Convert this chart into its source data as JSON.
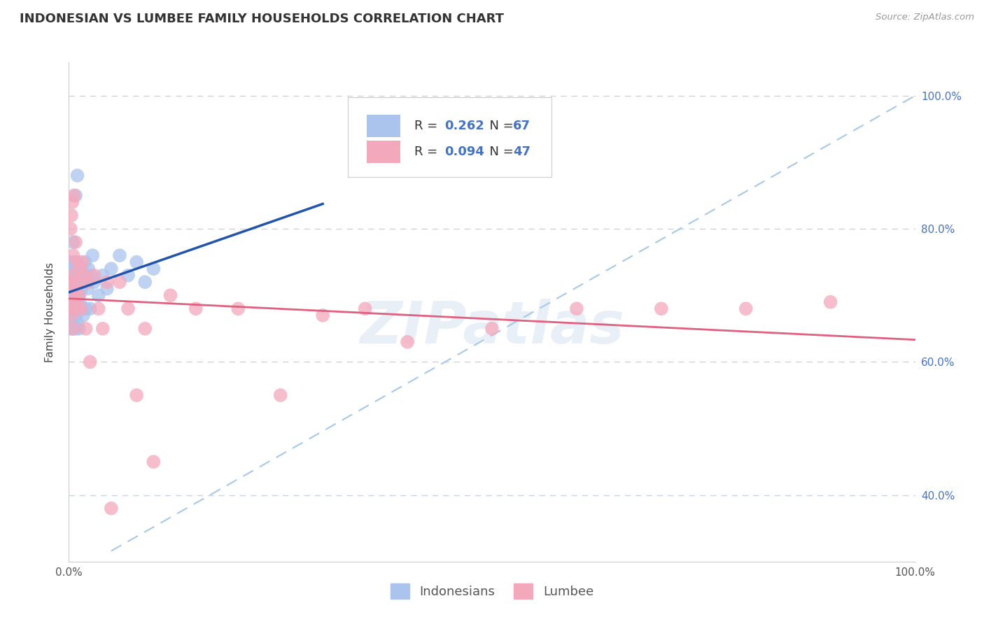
{
  "title": "INDONESIAN VS LUMBEE FAMILY HOUSEHOLDS CORRELATION CHART",
  "source": "Source: ZipAtlas.com",
  "ylabel": "Family Households",
  "indonesian_label": "Indonesians",
  "lumbee_label": "Lumbee",
  "indonesian_color": "#aac4ed",
  "lumbee_color": "#f4a8bc",
  "indonesian_line_color": "#2255aa",
  "lumbee_line_color": "#e06080",
  "trend_dash_color": "#a8c8e8",
  "r_indonesian": 0.262,
  "n_indonesian": 67,
  "r_lumbee": 0.094,
  "n_lumbee": 47,
  "watermark": "ZIPatlas",
  "indonesian_x": [
    0.001,
    0.001,
    0.001,
    0.002,
    0.002,
    0.002,
    0.002,
    0.003,
    0.003,
    0.003,
    0.003,
    0.004,
    0.004,
    0.004,
    0.004,
    0.005,
    0.005,
    0.005,
    0.005,
    0.006,
    0.006,
    0.006,
    0.007,
    0.007,
    0.007,
    0.007,
    0.008,
    0.008,
    0.008,
    0.009,
    0.009,
    0.009,
    0.01,
    0.01,
    0.01,
    0.011,
    0.011,
    0.012,
    0.012,
    0.013,
    0.013,
    0.014,
    0.015,
    0.015,
    0.016,
    0.017,
    0.018,
    0.019,
    0.02,
    0.02,
    0.022,
    0.023,
    0.025,
    0.026,
    0.028,
    0.03,
    0.035,
    0.04,
    0.045,
    0.05,
    0.06,
    0.07,
    0.08,
    0.09,
    0.1,
    0.008,
    0.01
  ],
  "indonesian_y": [
    0.68,
    0.72,
    0.65,
    0.74,
    0.7,
    0.67,
    0.71,
    0.73,
    0.68,
    0.75,
    0.66,
    0.72,
    0.69,
    0.74,
    0.65,
    0.78,
    0.68,
    0.71,
    0.65,
    0.67,
    0.72,
    0.7,
    0.71,
    0.68,
    0.75,
    0.73,
    0.7,
    0.65,
    0.73,
    0.73,
    0.67,
    0.69,
    0.69,
    0.72,
    0.66,
    0.68,
    0.71,
    0.7,
    0.65,
    0.73,
    0.69,
    0.74,
    0.68,
    0.71,
    0.72,
    0.67,
    0.72,
    0.75,
    0.73,
    0.68,
    0.71,
    0.74,
    0.68,
    0.73,
    0.76,
    0.72,
    0.7,
    0.73,
    0.71,
    0.74,
    0.76,
    0.73,
    0.75,
    0.72,
    0.74,
    0.85,
    0.88
  ],
  "lumbee_x": [
    0.001,
    0.002,
    0.002,
    0.003,
    0.003,
    0.004,
    0.004,
    0.005,
    0.005,
    0.006,
    0.006,
    0.007,
    0.008,
    0.008,
    0.009,
    0.01,
    0.01,
    0.012,
    0.013,
    0.015,
    0.016,
    0.018,
    0.02,
    0.022,
    0.025,
    0.03,
    0.035,
    0.04,
    0.045,
    0.05,
    0.06,
    0.07,
    0.08,
    0.09,
    0.1,
    0.12,
    0.15,
    0.2,
    0.25,
    0.3,
    0.35,
    0.4,
    0.5,
    0.6,
    0.7,
    0.8,
    0.9
  ],
  "lumbee_y": [
    0.68,
    0.72,
    0.8,
    0.67,
    0.82,
    0.73,
    0.84,
    0.65,
    0.76,
    0.7,
    0.85,
    0.69,
    0.71,
    0.78,
    0.68,
    0.72,
    0.75,
    0.7,
    0.74,
    0.68,
    0.75,
    0.73,
    0.65,
    0.72,
    0.6,
    0.73,
    0.68,
    0.65,
    0.72,
    0.38,
    0.72,
    0.68,
    0.55,
    0.65,
    0.45,
    0.7,
    0.68,
    0.68,
    0.55,
    0.67,
    0.68,
    0.63,
    0.65,
    0.68,
    0.68,
    0.68,
    0.69
  ],
  "xmin": 0.0,
  "xmax": 1.0,
  "ymin": 0.3,
  "ymax": 1.05,
  "yticks": [
    0.4,
    0.6,
    0.8,
    1.0
  ],
  "ytick_labels": [
    "40.0%",
    "60.0%",
    "80.0%",
    "100.0%"
  ],
  "xtick_labels": [
    "0.0%",
    "100.0%"
  ],
  "xtick_values": [
    0.0,
    1.0
  ],
  "grid_color": "#c8d4e4",
  "background_color": "#ffffff",
  "title_fontsize": 13,
  "axis_label_fontsize": 11,
  "legend_fontsize": 13,
  "tick_color": "#4472c4",
  "tick_fontsize": 11
}
